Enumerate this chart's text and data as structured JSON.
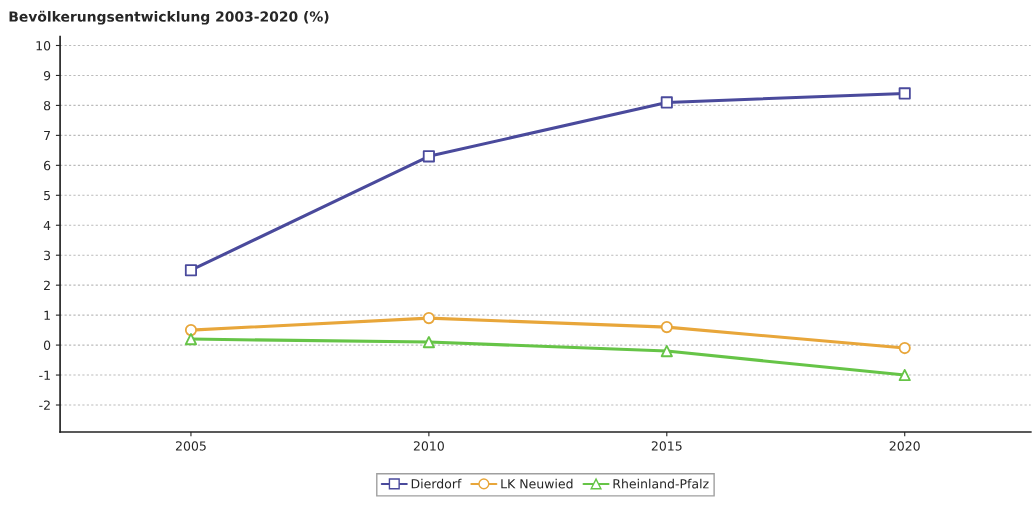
{
  "chart_data": {
    "type": "line",
    "title": "Bevölkerungsentwicklung 2003-2020 (%)",
    "x": [
      2005,
      2010,
      2015,
      2020
    ],
    "series": [
      {
        "name": "Dierdorf",
        "color": "#4a4a9c",
        "marker": "square",
        "values": [
          2.5,
          6.3,
          8.1,
          8.4
        ]
      },
      {
        "name": "LK Neuwied",
        "color": "#e8a63a",
        "marker": "circle",
        "values": [
          0.5,
          0.9,
          0.6,
          -0.1
        ]
      },
      {
        "name": "Rheinland-Pfalz",
        "color": "#66c447",
        "marker": "triangle",
        "values": [
          0.2,
          0.1,
          -0.2,
          -1.0
        ]
      }
    ],
    "xlim": [
      2002.25,
      2022.65
    ],
    "xticks": [
      2005,
      2010,
      2015,
      2020
    ],
    "ylim": [
      -2.9,
      10.3
    ],
    "yticks": [
      -2,
      -1,
      0,
      1,
      2,
      3,
      4,
      5,
      6,
      7,
      8,
      9,
      10
    ],
    "grid": "y",
    "legend": "bottom",
    "line_style": "solid"
  }
}
